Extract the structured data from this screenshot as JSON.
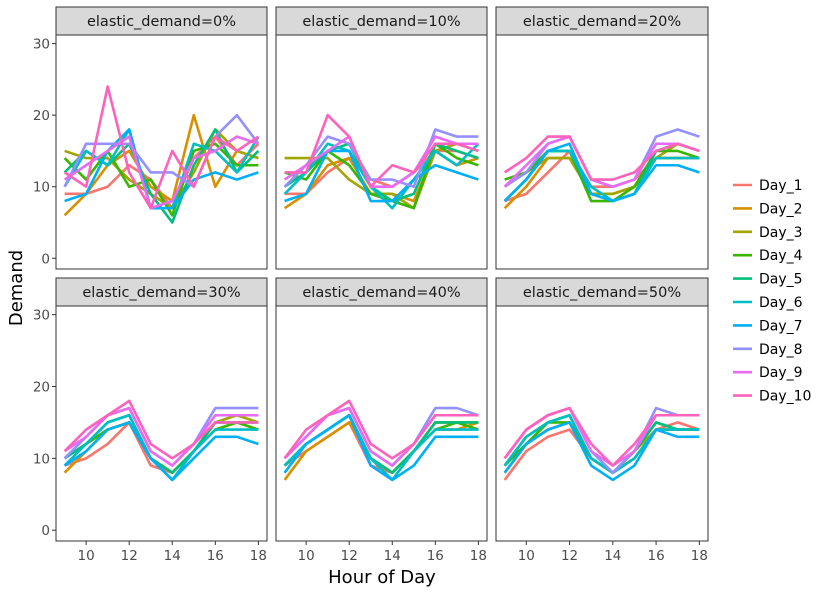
{
  "chart_data": {
    "type": "line",
    "xlabel": "Hour of Day",
    "ylabel": "Demand",
    "x": [
      9,
      10,
      11,
      12,
      13,
      14,
      15,
      16,
      17,
      18
    ],
    "x_ticks": [
      10,
      12,
      14,
      16,
      18
    ],
    "y_ticks": [
      0,
      10,
      20,
      30
    ],
    "xlim": [
      8.6,
      18.4
    ],
    "ylim": [
      -1.5,
      31.2
    ],
    "legend": {
      "position": "right",
      "entries": [
        "Day_1",
        "Day_2",
        "Day_3",
        "Day_4",
        "Day_5",
        "Day_6",
        "Day_7",
        "Day_8",
        "Day_9",
        "Day_10"
      ]
    },
    "colors": [
      "#F8766D",
      "#D89000",
      "#A3A500",
      "#39B600",
      "#00BF7D",
      "#00BFC4",
      "#00B0F6",
      "#9590FF",
      "#E76BF3",
      "#FF62BC"
    ],
    "panels": [
      {
        "label": "elastic_demand=0%",
        "series": [
          {
            "name": "Day_1",
            "values": [
              9,
              9,
              10,
              13,
              11,
              7,
              14,
              17,
              13,
              16
            ]
          },
          {
            "name": "Day_2",
            "values": [
              6,
              9,
              13,
              15,
              10,
              8,
              20,
              10,
              15,
              14
            ]
          },
          {
            "name": "Day_3",
            "values": [
              15,
              14,
              14,
              11,
              9,
              7,
              12,
              18,
              15,
              14
            ]
          },
          {
            "name": "Day_4",
            "values": [
              14,
              11,
              15,
              10,
              11,
              6,
              15,
              16,
              13,
              13
            ]
          },
          {
            "name": "Day_5",
            "values": [
              12,
              15,
              13,
              16,
              9,
              5,
              13,
              18,
              12,
              15
            ]
          },
          {
            "name": "Day_6",
            "values": [
              10,
              15,
              13,
              18,
              7,
              7,
              16,
              15,
              12,
              17
            ]
          },
          {
            "name": "Day_7",
            "values": [
              8,
              9,
              15,
              18,
              7,
              7,
              11,
              12,
              11,
              12
            ]
          },
          {
            "name": "Day_8",
            "values": [
              10,
              16,
              16,
              16,
              12,
              12,
              10,
              17,
              20,
              16
            ]
          },
          {
            "name": "Day_9",
            "values": [
              11,
              13,
              15,
              17,
              7,
              8,
              14,
              15,
              17,
              16
            ]
          },
          {
            "name": "Day_10",
            "values": [
              12,
              10,
              24,
              12,
              7,
              15,
              10,
              17,
              15,
              17
            ]
          }
        ]
      },
      {
        "label": "elastic_demand=10%",
        "series": [
          {
            "name": "Day_1",
            "values": [
              9,
              9,
              12,
              14,
              11,
              10,
              12,
              15,
              15,
              14
            ]
          },
          {
            "name": "Day_2",
            "values": [
              7,
              9,
              13,
              14,
              9,
              9,
              8,
              15,
              13,
              14
            ]
          },
          {
            "name": "Day_3",
            "values": [
              14,
              14,
              14,
              11,
              9,
              9,
              7,
              15,
              16,
              15
            ]
          },
          {
            "name": "Day_4",
            "values": [
              12,
              11,
              15,
              13,
              9,
              8,
              7,
              16,
              14,
              13
            ]
          },
          {
            "name": "Day_5",
            "values": [
              10,
              12,
              15,
              16,
              10,
              8,
              9,
              16,
              15,
              14
            ]
          },
          {
            "name": "Day_6",
            "values": [
              9,
              12,
              16,
              15,
              10,
              7,
              11,
              15,
              13,
              16
            ]
          },
          {
            "name": "Day_7",
            "values": [
              8,
              9,
              15,
              15,
              8,
              8,
              11,
              13,
              12,
              11
            ]
          },
          {
            "name": "Day_8",
            "values": [
              10,
              13,
              17,
              16,
              11,
              11,
              10,
              18,
              17,
              17
            ]
          },
          {
            "name": "Day_9",
            "values": [
              11,
              13,
              15,
              17,
              10,
              10,
              12,
              17,
              16,
              16
            ]
          },
          {
            "name": "Day_10",
            "values": [
              12,
              12,
              20,
              17,
              10,
              13,
              12,
              16,
              16,
              15
            ]
          }
        ]
      },
      {
        "label": "elastic_demand=20%",
        "series": [
          {
            "name": "Day_1",
            "values": [
              8,
              9,
              12,
              15,
              10,
              10,
              11,
              14,
              14,
              14
            ]
          },
          {
            "name": "Day_2",
            "values": [
              7,
              10,
              14,
              14,
              9,
              9,
              10,
              14,
              14,
              14
            ]
          },
          {
            "name": "Day_3",
            "values": [
              10,
              12,
              14,
              14,
              9,
              9,
              10,
              14,
              16,
              15
            ]
          },
          {
            "name": "Day_4",
            "values": [
              11,
              12,
              15,
              15,
              8,
              8,
              10,
              15,
              15,
              14
            ]
          },
          {
            "name": "Day_5",
            "values": [
              8,
              11,
              15,
              15,
              9,
              8,
              9,
              15,
              16,
              15
            ]
          },
          {
            "name": "Day_6",
            "values": [
              8,
              11,
              15,
              15,
              10,
              8,
              9,
              14,
              14,
              14
            ]
          },
          {
            "name": "Day_7",
            "values": [
              8,
              11,
              15,
              16,
              9,
              8,
              9,
              13,
              13,
              12
            ]
          },
          {
            "name": "Day_8",
            "values": [
              10,
              12,
              16,
              17,
              11,
              10,
              11,
              17,
              18,
              17
            ]
          },
          {
            "name": "Day_9",
            "values": [
              10,
              13,
              16,
              17,
              11,
              10,
              11,
              16,
              16,
              15
            ]
          },
          {
            "name": "Day_10",
            "values": [
              12,
              14,
              17,
              17,
              11,
              11,
              12,
              15,
              16,
              15
            ]
          }
        ]
      },
      {
        "label": "elastic_demand=30%",
        "series": [
          {
            "name": "Day_1",
            "values": [
              9,
              10,
              12,
              15,
              9,
              8,
              11,
              15,
              15,
              14
            ]
          },
          {
            "name": "Day_2",
            "values": [
              8,
              11,
              14,
              15,
              10,
              8,
              11,
              14,
              15,
              15
            ]
          },
          {
            "name": "Day_3",
            "values": [
              10,
              12,
              14,
              15,
              10,
              8,
              11,
              15,
              16,
              15
            ]
          },
          {
            "name": "Day_4",
            "values": [
              10,
              12,
              14,
              15,
              10,
              8,
              11,
              14,
              15,
              14
            ]
          },
          {
            "name": "Day_5",
            "values": [
              10,
              12,
              15,
              16,
              10,
              8,
              11,
              15,
              15,
              15
            ]
          },
          {
            "name": "Day_6",
            "values": [
              9,
              12,
              15,
              16,
              10,
              7,
              11,
              14,
              14,
              14
            ]
          },
          {
            "name": "Day_7",
            "values": [
              9,
              11,
              14,
              15,
              10,
              7,
              10,
              13,
              13,
              12
            ]
          },
          {
            "name": "Day_8",
            "values": [
              10,
              13,
              16,
              17,
              11,
              9,
              12,
              17,
              17,
              17
            ]
          },
          {
            "name": "Day_9",
            "values": [
              11,
              13,
              16,
              17,
              11,
              9,
              12,
              16,
              16,
              16
            ]
          },
          {
            "name": "Day_10",
            "values": [
              11,
              14,
              16,
              18,
              12,
              10,
              12,
              15,
              15,
              15
            ]
          }
        ]
      },
      {
        "label": "elastic_demand=40%",
        "series": [
          {
            "name": "Day_1",
            "values": [
              9,
              11,
              13,
              15,
              9,
              8,
              11,
              15,
              15,
              14
            ]
          },
          {
            "name": "Day_2",
            "values": [
              7,
              11,
              13,
              15,
              10,
              8,
              11,
              14,
              14,
              15
            ]
          },
          {
            "name": "Day_3",
            "values": [
              9,
              12,
              14,
              16,
              10,
              8,
              11,
              15,
              15,
              15
            ]
          },
          {
            "name": "Day_4",
            "values": [
              9,
              12,
              14,
              16,
              10,
              8,
              11,
              14,
              15,
              14
            ]
          },
          {
            "name": "Day_5",
            "values": [
              9,
              12,
              14,
              16,
              10,
              8,
              11,
              15,
              15,
              15
            ]
          },
          {
            "name": "Day_6",
            "values": [
              9,
              12,
              14,
              16,
              10,
              7,
              11,
              14,
              14,
              14
            ]
          },
          {
            "name": "Day_7",
            "values": [
              8,
              12,
              14,
              16,
              9,
              7,
              9,
              13,
              13,
              13
            ]
          },
          {
            "name": "Day_8",
            "values": [
              10,
              13,
              16,
              17,
              11,
              9,
              12,
              17,
              17,
              16
            ]
          },
          {
            "name": "Day_9",
            "values": [
              10,
              13,
              16,
              17,
              11,
              9,
              12,
              16,
              16,
              16
            ]
          },
          {
            "name": "Day_10",
            "values": [
              10,
              14,
              16,
              18,
              12,
              10,
              12,
              16,
              16,
              16
            ]
          }
        ]
      },
      {
        "label": "elastic_demand=50%",
        "series": [
          {
            "name": "Day_1",
            "values": [
              7,
              11,
              13,
              14,
              10,
              8,
              10,
              14,
              15,
              14
            ]
          },
          {
            "name": "Day_2",
            "values": [
              8,
              12,
              14,
              15,
              10,
              8,
              10,
              14,
              14,
              14
            ]
          },
          {
            "name": "Day_3",
            "values": [
              9,
              12,
              14,
              15,
              10,
              8,
              11,
              14,
              14,
              14
            ]
          },
          {
            "name": "Day_4",
            "values": [
              9,
              12,
              15,
              15,
              10,
              8,
              11,
              15,
              14,
              14
            ]
          },
          {
            "name": "Day_5",
            "values": [
              9,
              13,
              15,
              16,
              10,
              8,
              11,
              15,
              14,
              14
            ]
          },
          {
            "name": "Day_6",
            "values": [
              9,
              13,
              15,
              16,
              10,
              8,
              10,
              14,
              14,
              14
            ]
          },
          {
            "name": "Day_7",
            "values": [
              8,
              12,
              14,
              15,
              9,
              7,
              9,
              14,
              13,
              13
            ]
          },
          {
            "name": "Day_8",
            "values": [
              10,
              14,
              16,
              17,
              11,
              8,
              11,
              17,
              16,
              16
            ]
          },
          {
            "name": "Day_9",
            "values": [
              10,
              14,
              16,
              17,
              11,
              9,
              11,
              16,
              16,
              16
            ]
          },
          {
            "name": "Day_10",
            "values": [
              10,
              14,
              16,
              17,
              12,
              9,
              12,
              16,
              16,
              16
            ]
          }
        ]
      }
    ]
  }
}
